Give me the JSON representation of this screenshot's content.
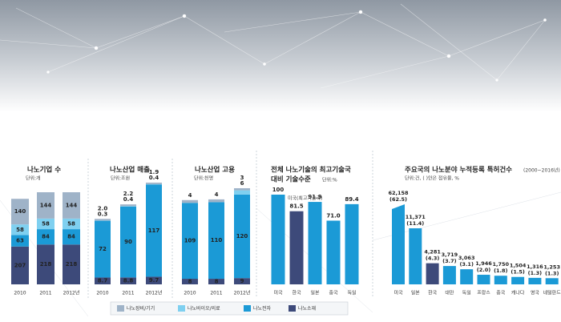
{
  "chart_data": [
    {
      "type": "bar",
      "stacked": true,
      "title": "나노기업 수",
      "unit": "단위:개",
      "categories": [
        "2010",
        "2011",
        "2012년"
      ],
      "series": [
        {
          "name": "나노소재",
          "color": "#3d4a7a",
          "values": [
            207,
            218,
            218
          ]
        },
        {
          "name": "나노전자",
          "color": "#1b9ad6",
          "values": [
            63,
            84,
            84
          ]
        },
        {
          "name": "나노바이오/의료",
          "color": "#7fd0f0",
          "values": [
            58,
            58,
            58
          ]
        },
        {
          "name": "나노장비/기기",
          "color": "#9fb3c8",
          "values": [
            140,
            144,
            144
          ]
        }
      ]
    },
    {
      "type": "bar",
      "stacked": true,
      "title": "나노산업 매출",
      "unit": "단위:조원",
      "categories": [
        "2010",
        "2011",
        "2012년"
      ],
      "series": [
        {
          "color": "#3d4a7a",
          "values": [
            8.7,
            8.8,
            9.7
          ]
        },
        {
          "color": "#1b9ad6",
          "values": [
            72,
            90,
            117
          ]
        },
        {
          "color": "#7fd0f0",
          "values": [
            0.3,
            0.4,
            0.4
          ]
        },
        {
          "color": "#9fb3c8",
          "values": [
            2.0,
            2.2,
            1.9
          ],
          "value_labels": [
            "2.0",
            "2.2",
            "1.9"
          ]
        }
      ]
    },
    {
      "type": "bar",
      "stacked": true,
      "title": "나노산업 고용",
      "unit": "단위:천명",
      "categories": [
        "2010",
        "2011",
        "2012년"
      ],
      "series": [
        {
          "color": "#3d4a7a",
          "values": [
            8,
            8,
            9
          ]
        },
        {
          "color": "#1b9ad6",
          "values": [
            109,
            110,
            120
          ]
        },
        {
          "color": "#7fd0f0",
          "values": [
            null,
            null,
            6
          ]
        },
        {
          "color": "#9fb3c8",
          "values": [
            4,
            4,
            3
          ]
        }
      ]
    },
    {
      "type": "bar",
      "title": [
        "전체 나노기술의 최고기술국",
        "대비 기술수준"
      ],
      "unit": "단위:%",
      "annotation": "미국(최고기술국)",
      "categories": [
        "미국",
        "한국",
        "일본",
        "중국",
        "독일"
      ],
      "values": [
        100,
        81.5,
        91.9,
        71.0,
        89.4
      ],
      "value_labels": [
        "100",
        "81.5",
        "91.9",
        "71.0",
        "89.4"
      ],
      "colors": [
        "#1b9ad6",
        "#3d4a7a",
        "#1b9ad6",
        "#1b9ad6",
        "#1b9ad6"
      ]
    },
    {
      "type": "bar",
      "broken_top": true,
      "title": "주요국의 나노분야 누적등록 특허건수",
      "subtitle": "(2000~2016년)",
      "unit": "단위:건, ( )안은 점유율, %",
      "categories": [
        "미국",
        "일본",
        "한국",
        "대만",
        "독일",
        "프랑스",
        "중국",
        "캐나다",
        "영국",
        "네덜란드"
      ],
      "values": [
        62158,
        11371,
        4281,
        3719,
        3063,
        1946,
        1750,
        1504,
        1316,
        1253
      ],
      "value_labels": [
        "62,158",
        "11,371",
        "4,281",
        "3,719",
        "3,063",
        "1,946",
        "1,750",
        "1,504",
        "1,316",
        "1,253"
      ],
      "shares": [
        62.5,
        11.4,
        4.3,
        3.7,
        3.1,
        2.0,
        1.8,
        1.5,
        1.3,
        1.3
      ],
      "share_labels": [
        "(62.5)",
        "(11.4)",
        "(4.3)",
        "(3.7)",
        "(3.1)",
        "(2.0)",
        "(1.8)",
        "(1.5)",
        "(1.3)",
        "(1.3)"
      ],
      "colors": [
        "#1b9ad6",
        "#1b9ad6",
        "#3d4a7a",
        "#1b9ad6",
        "#1b9ad6",
        "#1b9ad6",
        "#1b9ad6",
        "#1b9ad6",
        "#1b9ad6",
        "#1b9ad6"
      ]
    }
  ]
}
